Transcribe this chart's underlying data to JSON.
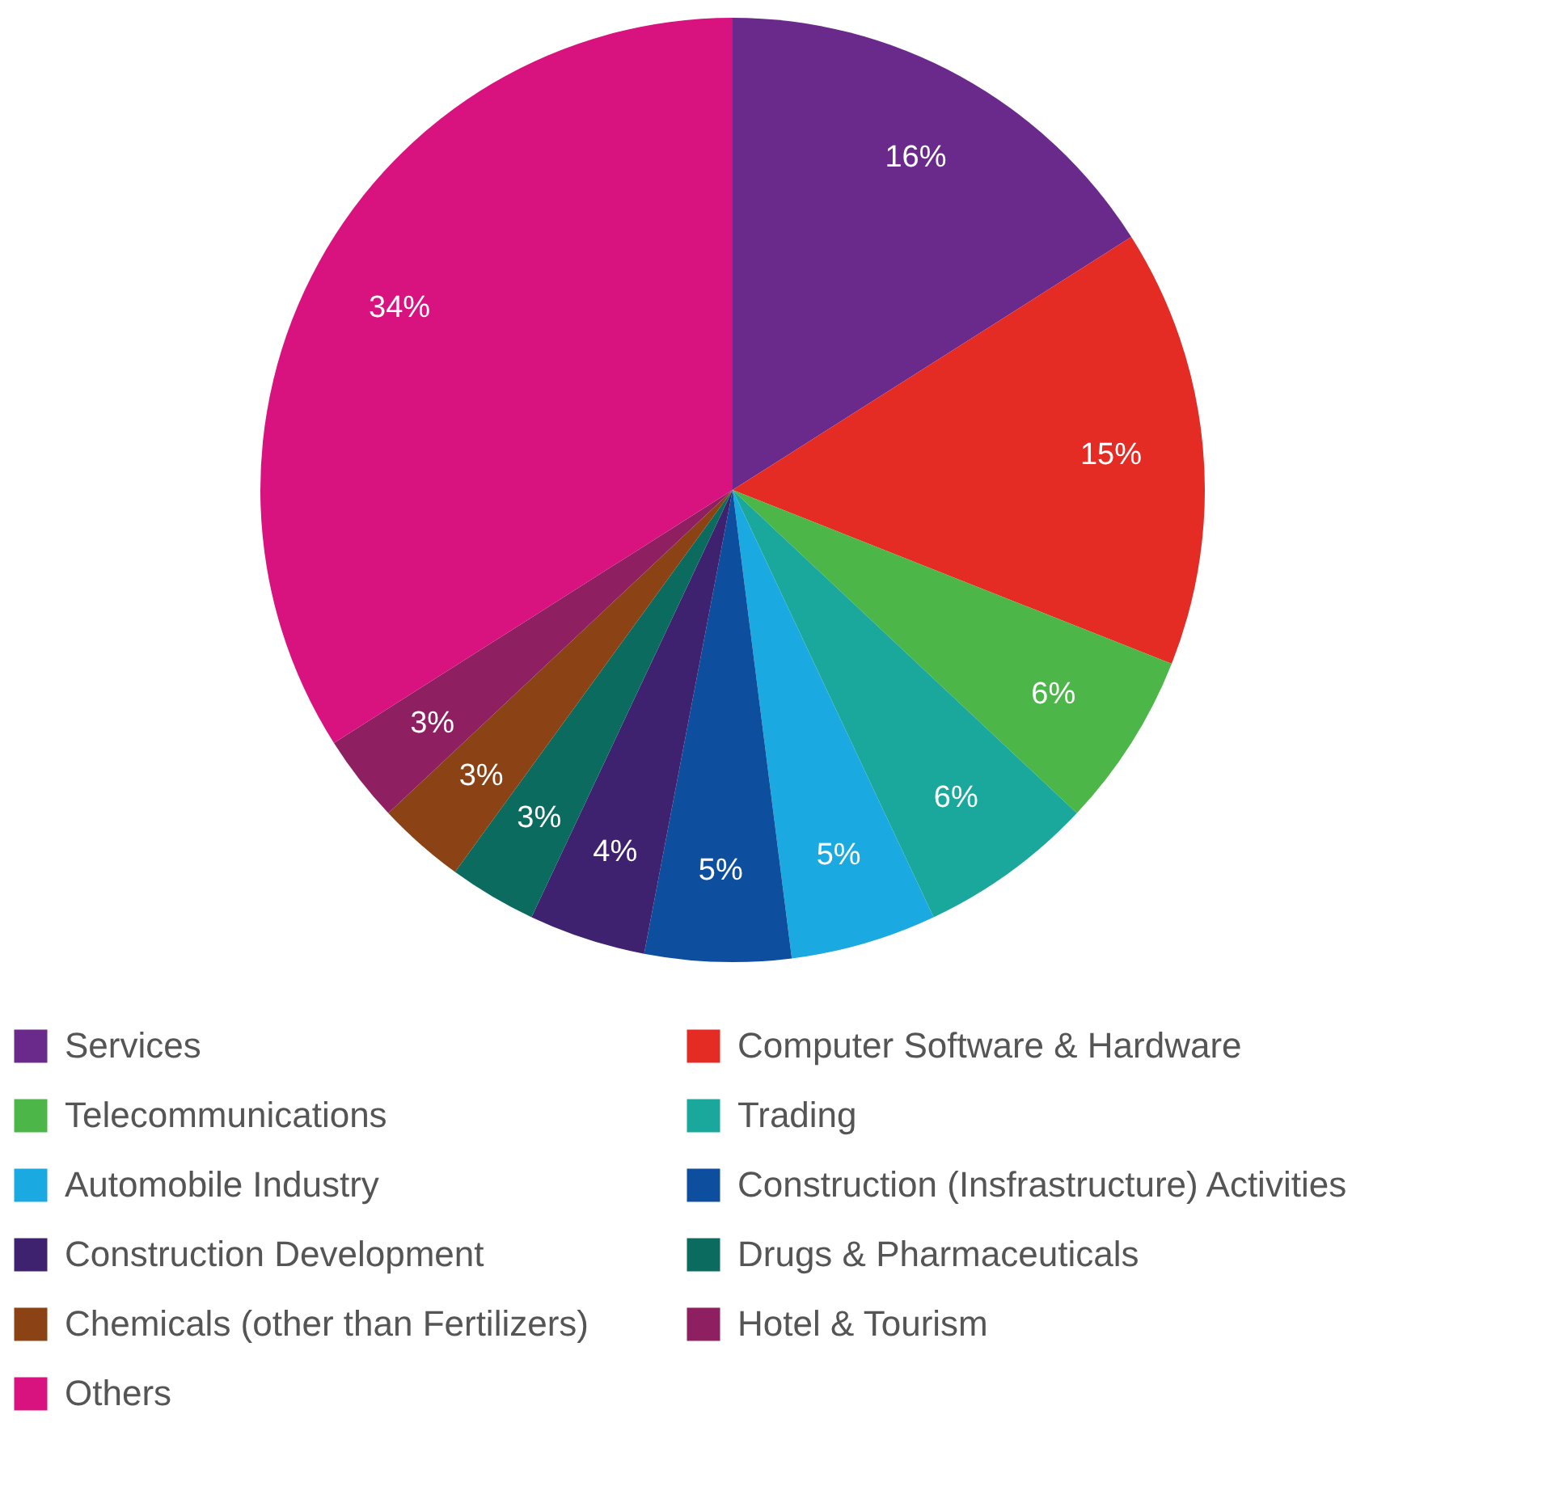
{
  "chart_data": {
    "type": "pie",
    "categories": [
      "Services",
      "Computer Software & Hardware",
      "Telecommunications",
      "Trading",
      "Automobile Industry",
      "Construction (Insfrastructure) Activities",
      "Construction Development",
      "Drugs & Pharmaceuticals",
      "Chemicals (other than Fertilizers)",
      "Hotel & Tourism",
      "Others"
    ],
    "values": [
      16,
      15,
      6,
      6,
      5,
      5,
      4,
      3,
      3,
      3,
      34
    ],
    "value_labels": [
      "16%",
      "15%",
      "6%",
      "6%",
      "5%",
      "5%",
      "4%",
      "3%",
      "3%",
      "3%",
      "34%"
    ],
    "colors": [
      "#6a2a8c",
      "#e42b24",
      "#4cb648",
      "#1aa89c",
      "#1ba9e1",
      "#0d4f9e",
      "#3e2270",
      "#0b6b5e",
      "#8b4214",
      "#8e2062",
      "#d8127f"
    ],
    "legend": "bottom"
  }
}
